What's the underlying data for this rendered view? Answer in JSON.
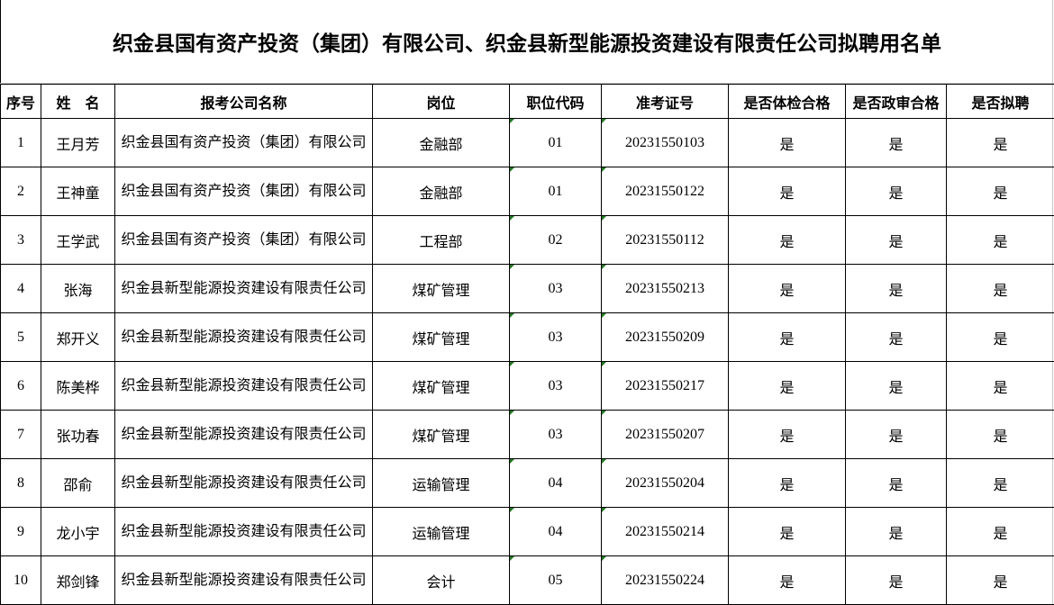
{
  "title": "织金县国有资产投资（集团）有限公司、织金县新型能源投资建设有限责任公司拟聘用名单",
  "columns": [
    "序号",
    "姓　名",
    "报考公司名称",
    "岗位",
    "职位代码",
    "准考证号",
    "是否体检合格",
    "是否政审合格",
    "是否拟聘"
  ],
  "rows": [
    [
      "1",
      "王月芳",
      "织金县国有资产投资（集团）有限公司",
      "金融部",
      "01",
      "20231550103",
      "是",
      "是",
      "是"
    ],
    [
      "2",
      "王神童",
      "织金县国有资产投资（集团）有限公司",
      "金融部",
      "01",
      "20231550122",
      "是",
      "是",
      "是"
    ],
    [
      "3",
      "王学武",
      "织金县国有资产投资（集团）有限公司",
      "工程部",
      "02",
      "20231550112",
      "是",
      "是",
      "是"
    ],
    [
      "4",
      "张海",
      "织金县新型能源投资建设有限责任公司",
      "煤矿管理",
      "03",
      "20231550213",
      "是",
      "是",
      "是"
    ],
    [
      "5",
      "郑开义",
      "织金县新型能源投资建设有限责任公司",
      "煤矿管理",
      "03",
      "20231550209",
      "是",
      "是",
      "是"
    ],
    [
      "6",
      "陈美桦",
      "织金县新型能源投资建设有限责任公司",
      "煤矿管理",
      "03",
      "20231550217",
      "是",
      "是",
      "是"
    ],
    [
      "7",
      "张功春",
      "织金县新型能源投资建设有限责任公司",
      "煤矿管理",
      "03",
      "20231550207",
      "是",
      "是",
      "是"
    ],
    [
      "8",
      "邵俞",
      "织金县新型能源投资建设有限责任公司",
      "运输管理",
      "04",
      "20231550204",
      "是",
      "是",
      "是"
    ],
    [
      "9",
      "龙小宇",
      "织金县新型能源投资建设有限责任公司",
      "运输管理",
      "04",
      "20231550214",
      "是",
      "是",
      "是"
    ],
    [
      "10",
      "郑剑锋",
      "织金县新型能源投资建设有限责任公司",
      "会计",
      "05",
      "20231550224",
      "是",
      "是",
      "是"
    ]
  ]
}
